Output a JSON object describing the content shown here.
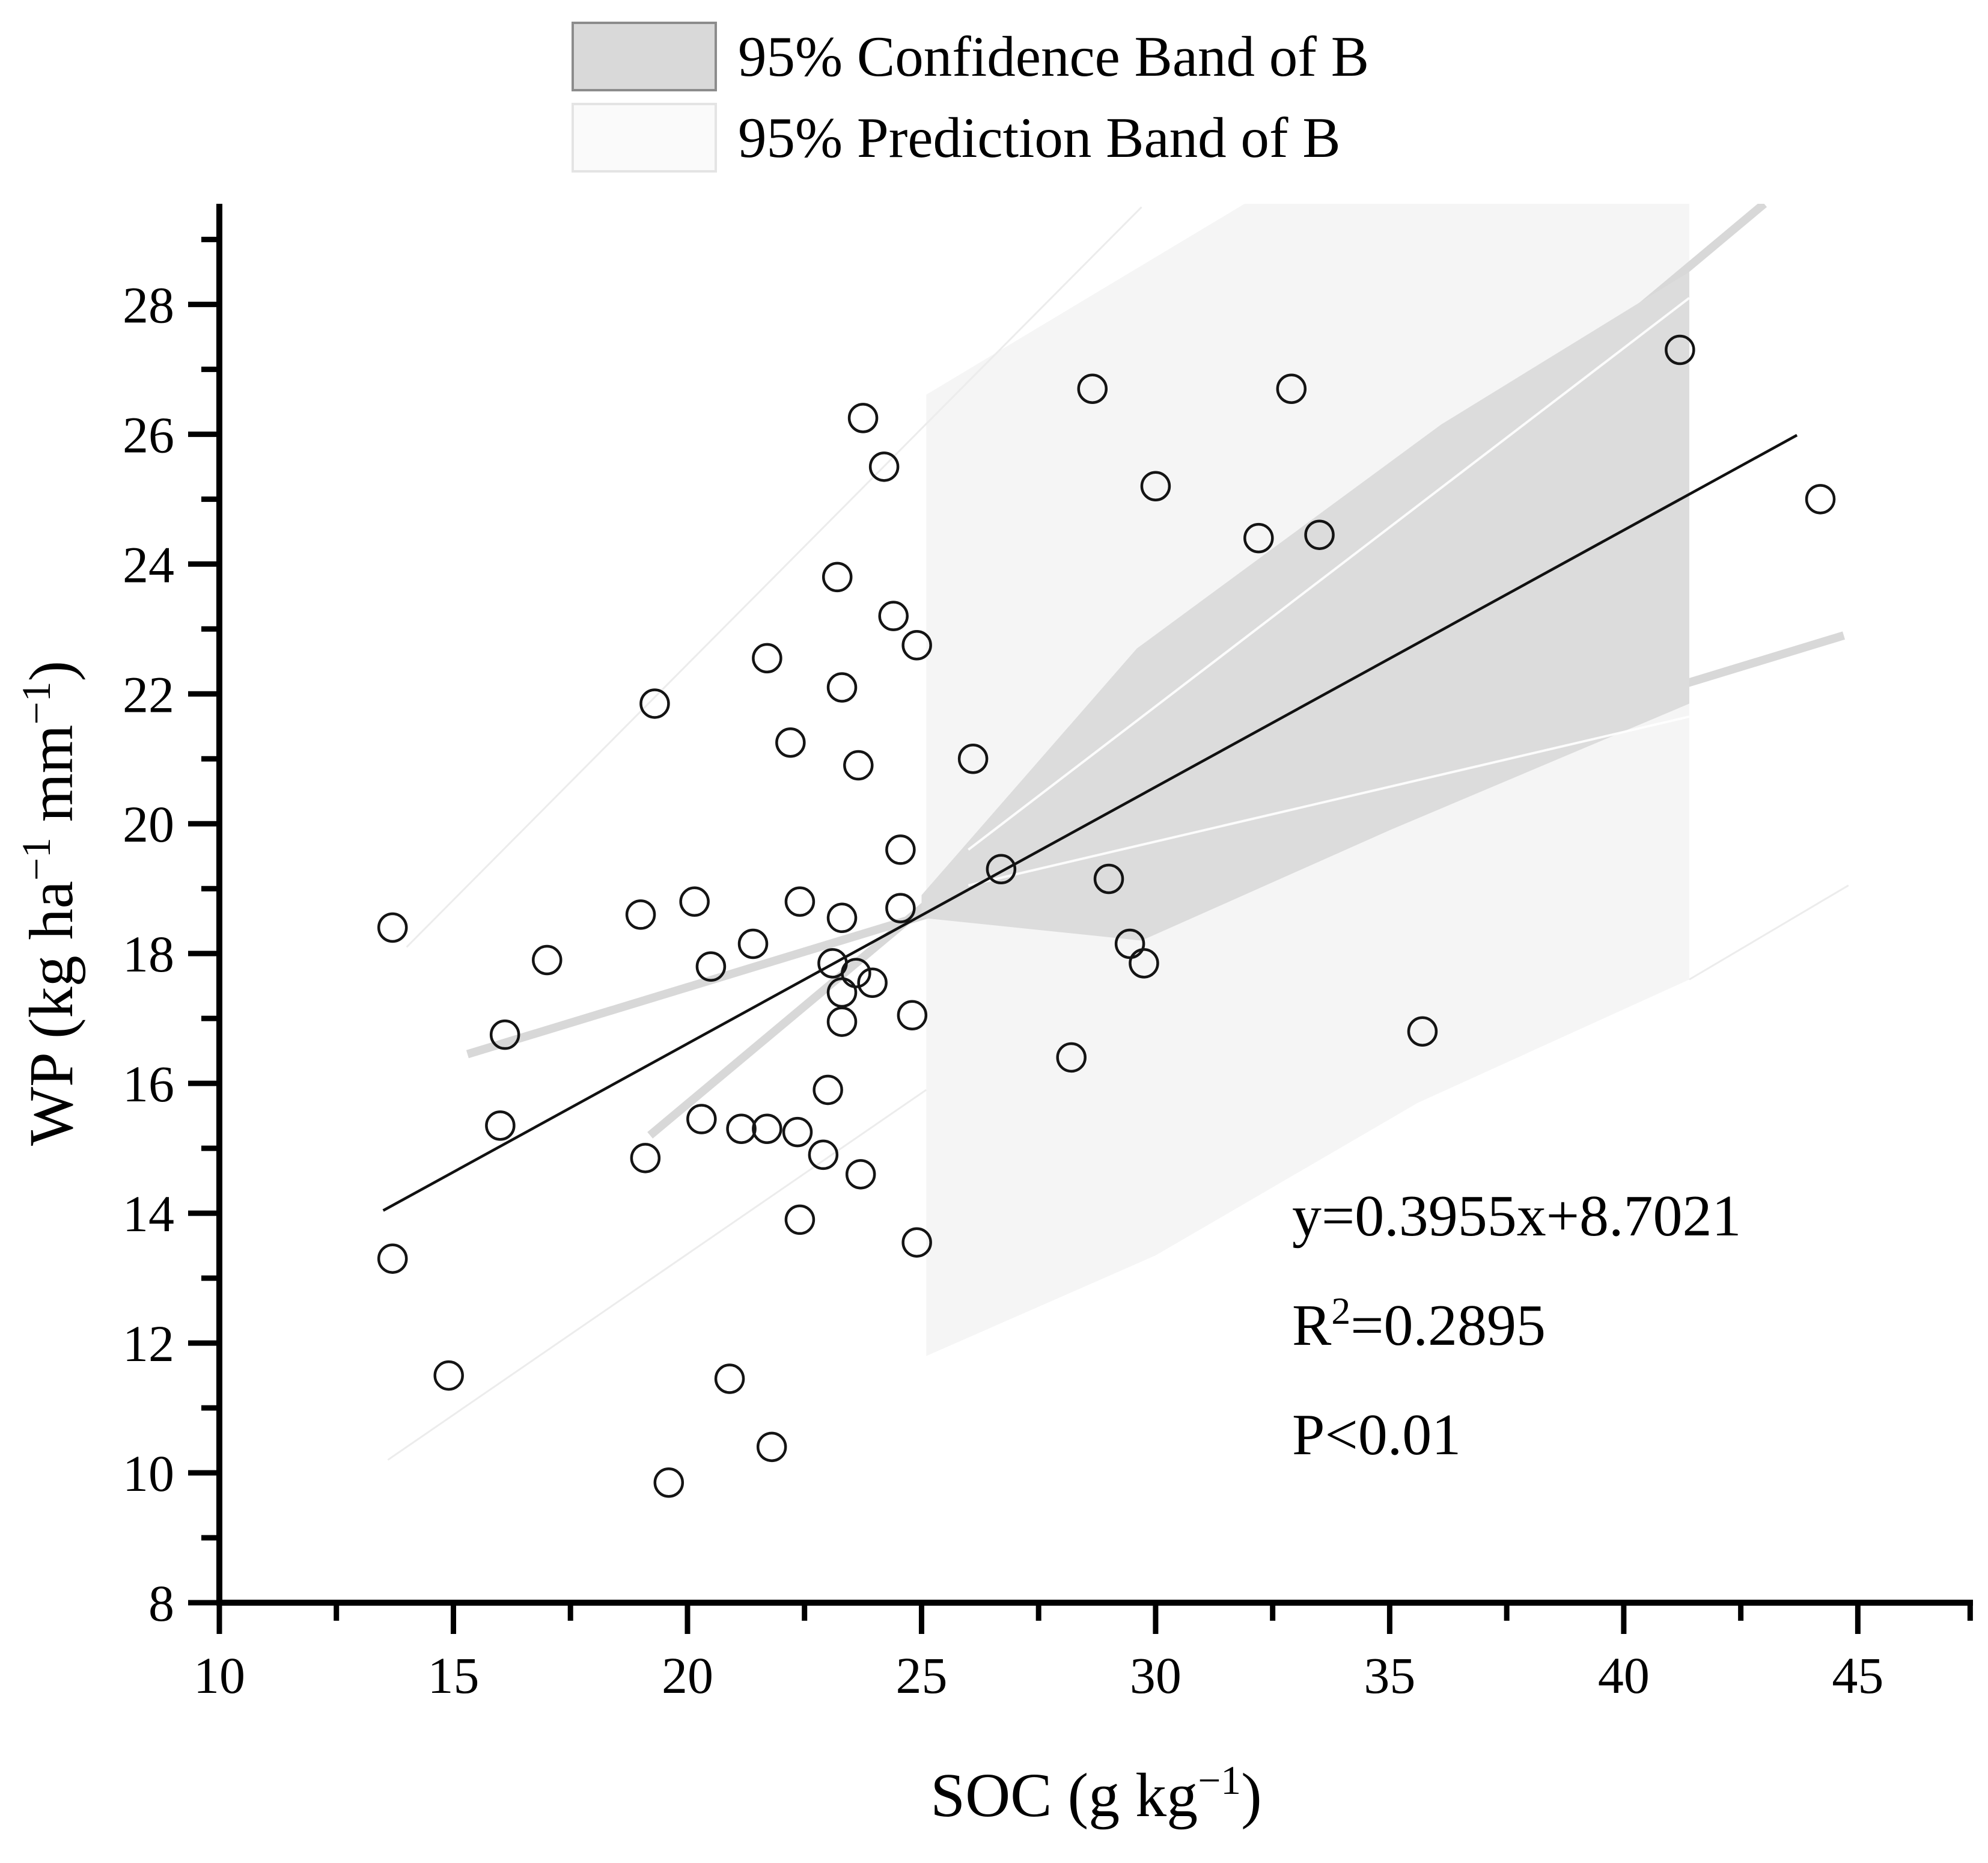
{
  "figure": {
    "kind": "scatter-regression-figure",
    "background": "#ffffff"
  },
  "legend": {
    "items": [
      {
        "label": "95% Confidence Band of B",
        "fill": "#d9d9d9",
        "stroke": "#8c8c8c"
      },
      {
        "label": "95% Prediction Band of B",
        "fill": "#fafafa",
        "stroke": "#e4e4e4"
      }
    ]
  },
  "annotation": {
    "line1": [
      {
        "t": "y=0.3955x+8.7021"
      }
    ],
    "line2": [
      {
        "t": "R"
      },
      {
        "t": "2",
        "sup": true
      },
      {
        "t": "=0.2895"
      }
    ],
    "line3": [
      {
        "t": "P<0.01"
      }
    ]
  },
  "chart_data": {
    "type": "scatter",
    "title": "",
    "xlabel_parts": [
      {
        "t": "SOC (g kg"
      },
      {
        "t": "−1",
        "sup": true
      },
      {
        "t": ")"
      }
    ],
    "ylabel_parts": [
      {
        "t": "WP (kg ha"
      },
      {
        "t": "−1",
        "sup": true
      },
      {
        "t": " mm"
      },
      {
        "t": "−1",
        "sup": true
      },
      {
        "t": ")"
      }
    ],
    "xlim": [
      10,
      47.46
    ],
    "ylim": [
      8,
      29.55
    ],
    "x_major_ticks": [
      10,
      15,
      20,
      25,
      30,
      35,
      40,
      45
    ],
    "x_minor_ticks": [
      12.5,
      17.5,
      22.5,
      27.5,
      32.5,
      37.5,
      42.5,
      47.4
    ],
    "y_major_ticks": [
      8,
      10,
      12,
      14,
      16,
      18,
      20,
      22,
      24,
      26,
      28
    ],
    "y_minor_ticks": [
      9,
      11,
      13,
      15,
      17,
      19,
      21,
      23,
      25,
      27,
      29
    ],
    "grid": false,
    "legend_position": "top-center",
    "fit_line": {
      "slope": 0.3955,
      "intercept": 8.7021,
      "x_start": 13.5,
      "x_end": 43.7,
      "color": "#111111",
      "width": 4.5
    },
    "points": [
      [
        13.7,
        18.4
      ],
      [
        13.7,
        13.3
      ],
      [
        14.9,
        11.5
      ],
      [
        16.1,
        16.75
      ],
      [
        16.0,
        15.35
      ],
      [
        17.0,
        17.9
      ],
      [
        19.0,
        18.6
      ],
      [
        20.15,
        18.8
      ],
      [
        19.3,
        21.85
      ],
      [
        21.7,
        22.55
      ],
      [
        22.2,
        21.25
      ],
      [
        19.6,
        9.85
      ],
      [
        20.5,
        17.8
      ],
      [
        21.4,
        18.15
      ],
      [
        19.1,
        14.85
      ],
      [
        20.9,
        11.45
      ],
      [
        21.8,
        10.4
      ],
      [
        20.3,
        15.45
      ],
      [
        21.15,
        15.3
      ],
      [
        21.7,
        15.3
      ],
      [
        22.35,
        15.25
      ],
      [
        23.0,
        15.9
      ],
      [
        22.9,
        14.9
      ],
      [
        23.7,
        14.6
      ],
      [
        22.4,
        13.9
      ],
      [
        24.9,
        13.55
      ],
      [
        22.4,
        18.8
      ],
      [
        23.2,
        23.8
      ],
      [
        24.4,
        23.2
      ],
      [
        24.9,
        22.75
      ],
      [
        23.3,
        22.1
      ],
      [
        23.75,
        26.25
      ],
      [
        24.2,
        25.5
      ],
      [
        28.65,
        26.7
      ],
      [
        32.9,
        26.7
      ],
      [
        23.65,
        20.9
      ],
      [
        26.1,
        21.0
      ],
      [
        24.55,
        19.6
      ],
      [
        26.7,
        19.3
      ],
      [
        24.55,
        18.7
      ],
      [
        23.3,
        18.55
      ],
      [
        29.0,
        19.15
      ],
      [
        29.45,
        18.15
      ],
      [
        29.75,
        17.85
      ],
      [
        28.2,
        16.4
      ],
      [
        24.8,
        17.05
      ],
      [
        23.1,
        17.85
      ],
      [
        23.6,
        17.7
      ],
      [
        23.95,
        17.55
      ],
      [
        23.3,
        17.4
      ],
      [
        23.3,
        16.95
      ],
      [
        30.0,
        25.2
      ],
      [
        32.2,
        24.4
      ],
      [
        33.5,
        24.45
      ],
      [
        35.7,
        16.8
      ],
      [
        41.2,
        27.3
      ],
      [
        44.2,
        25.0
      ]
    ],
    "point_style": {
      "radius": 23,
      "stroke": "#141414",
      "stroke_width": 4.5,
      "fill": "none"
    },
    "bands": {
      "prediction_polygon": [
        [
          20.8,
          24.75
        ],
        [
          31.9,
          29.55
        ],
        [
          41.4,
          29.55
        ],
        [
          41.4,
          17.6
        ],
        [
          35.6,
          15.7
        ],
        [
          30.0,
          13.35
        ],
        [
          25.1,
          11.8
        ],
        [
          25.1,
          26.61
        ]
      ],
      "prediction_fill": "#f5f5f5",
      "confidence_polygon": [
        [
          25.0,
          18.9
        ],
        [
          29.6,
          22.7
        ],
        [
          36.1,
          26.15
        ],
        [
          41.4,
          28.5
        ],
        [
          41.4,
          21.85
        ],
        [
          35.0,
          19.9
        ],
        [
          29.7,
          18.2
        ],
        [
          25.0,
          18.55
        ]
      ],
      "confidence_fill": "#dcdcdc",
      "boundary_strips": [
        {
          "from": [
            15.3,
            16.45
          ],
          "to": [
            44.7,
            22.9
          ],
          "w": 14,
          "color": "#d8d8d8"
        },
        {
          "from": [
            19.2,
            15.2
          ],
          "to": [
            43.0,
            29.55
          ],
          "w": 14,
          "color": "#d8d8d8"
        }
      ],
      "white_streaks": [
        {
          "from": [
            26.0,
            19.6
          ],
          "to": [
            41.4,
            28.1
          ],
          "w": 4
        },
        {
          "from": [
            26.0,
            19.05
          ],
          "to": [
            41.4,
            21.65
          ],
          "w": 4
        }
      ],
      "faint_lines": [
        {
          "from": [
            13.6,
            10.2
          ],
          "to": [
            25.1,
            15.9
          ]
        },
        {
          "from": [
            14.0,
            18.1
          ],
          "to": [
            29.7,
            29.5
          ]
        },
        {
          "from": [
            41.4,
            17.6
          ],
          "to": [
            44.8,
            19.05
          ]
        }
      ],
      "faint_line_color": "#ececec",
      "faint_line_width": 3
    },
    "axis_style": {
      "color": "#000000",
      "line_width": 10,
      "major_tick_len": 52,
      "minor_tick_len": 30,
      "tick_width": 9
    }
  }
}
